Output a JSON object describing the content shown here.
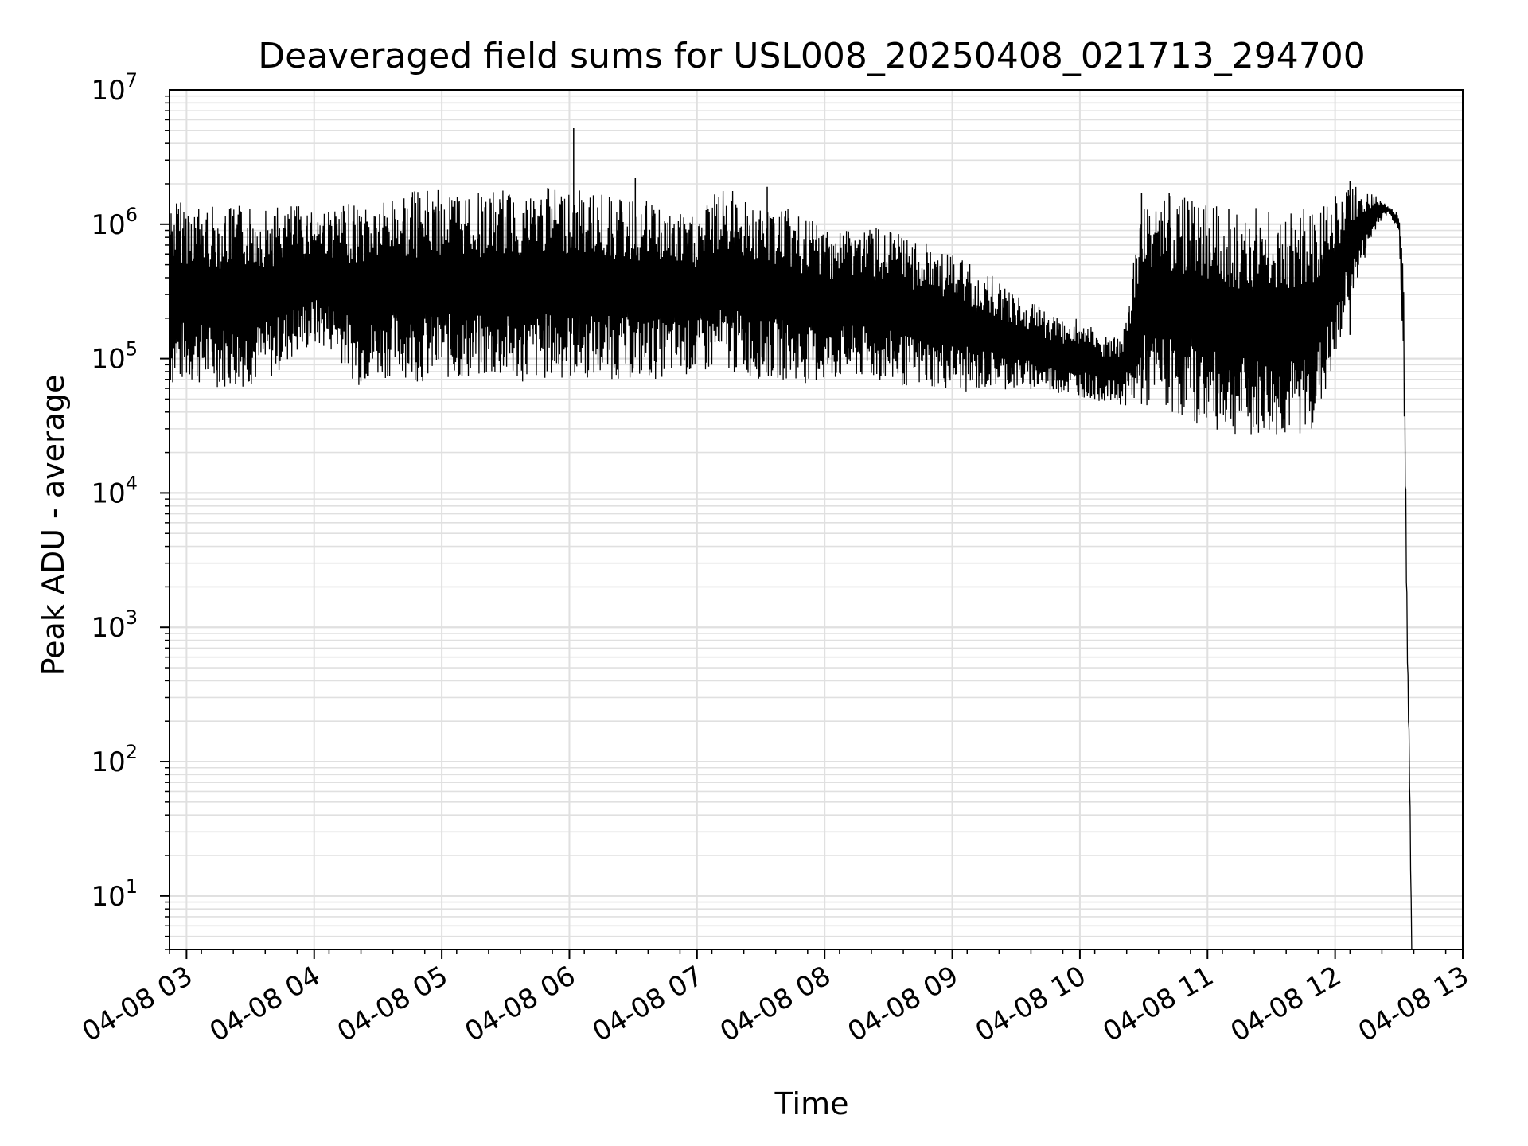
{
  "chart_data": {
    "type": "line",
    "title": "Deaveraged field sums for USL008_20250408_021713_294700",
    "xlabel": "Time",
    "ylabel": "Peak ADU - average",
    "yscale": "log",
    "ylim": [
      4,
      10000000
    ],
    "xlim": [
      "2025-04-08T02:52",
      "2025-04-08T13:00"
    ],
    "grid": true,
    "grid_minor": true,
    "line_color": "#000000",
    "grid_color": "#e0e0e0",
    "x_tick_labels": [
      "04-08 03",
      "04-08 04",
      "04-08 05",
      "04-08 06",
      "04-08 07",
      "04-08 08",
      "04-08 09",
      "04-08 10",
      "04-08 11",
      "04-08 12",
      "04-08 13"
    ],
    "x_ticks": [
      "2025-04-08T03:00",
      "2025-04-08T04:00",
      "2025-04-08T05:00",
      "2025-04-08T06:00",
      "2025-04-08T07:00",
      "2025-04-08T08:00",
      "2025-04-08T09:00",
      "2025-04-08T10:00",
      "2025-04-08T11:00",
      "2025-04-08T12:00",
      "2025-04-08T13:00"
    ],
    "y_ticks": [
      {
        "value": 10,
        "mantissa": "10",
        "exponent": "1"
      },
      {
        "value": 100,
        "mantissa": "10",
        "exponent": "2"
      },
      {
        "value": 1000,
        "mantissa": "10",
        "exponent": "3"
      },
      {
        "value": 10000,
        "mantissa": "10",
        "exponent": "4"
      },
      {
        "value": 100000,
        "mantissa": "10",
        "exponent": "5"
      },
      {
        "value": 1000000,
        "mantissa": "10",
        "exponent": "6"
      },
      {
        "value": 10000000,
        "mantissa": "10",
        "exponent": "7"
      }
    ],
    "series": [
      {
        "x": [
          "2025-04-08T02:52",
          "2025-04-08T03:00",
          "2025-04-08T03:10",
          "2025-04-08T03:20",
          "2025-04-08T03:30",
          "2025-04-08T03:40",
          "2025-04-08T03:50",
          "2025-04-08T04:00",
          "2025-04-08T04:10",
          "2025-04-08T04:20",
          "2025-04-08T04:30",
          "2025-04-08T04:40",
          "2025-04-08T04:50",
          "2025-04-08T05:00",
          "2025-04-08T05:10",
          "2025-04-08T05:20",
          "2025-04-08T05:30",
          "2025-04-08T05:40",
          "2025-04-08T05:50",
          "2025-04-08T06:00",
          "2025-04-08T06:02",
          "2025-04-08T06:10",
          "2025-04-08T06:20",
          "2025-04-08T06:30",
          "2025-04-08T06:40",
          "2025-04-08T06:50",
          "2025-04-08T07:00",
          "2025-04-08T07:10",
          "2025-04-08T07:20",
          "2025-04-08T07:30",
          "2025-04-08T07:40",
          "2025-04-08T07:50",
          "2025-04-08T08:00",
          "2025-04-08T08:10",
          "2025-04-08T08:20",
          "2025-04-08T08:30",
          "2025-04-08T08:40",
          "2025-04-08T08:50",
          "2025-04-08T09:00",
          "2025-04-08T09:10",
          "2025-04-08T09:20",
          "2025-04-08T09:30",
          "2025-04-08T09:40",
          "2025-04-08T09:50",
          "2025-04-08T10:00",
          "2025-04-08T10:10",
          "2025-04-08T10:20",
          "2025-04-08T10:30",
          "2025-04-08T10:40",
          "2025-04-08T10:50",
          "2025-04-08T11:00",
          "2025-04-08T11:10",
          "2025-04-08T11:20",
          "2025-04-08T11:30",
          "2025-04-08T11:40",
          "2025-04-08T11:50",
          "2025-04-08T12:00",
          "2025-04-08T12:05",
          "2025-04-08T12:10",
          "2025-04-08T12:15",
          "2025-04-08T12:20",
          "2025-04-08T12:25",
          "2025-04-08T12:30",
          "2025-04-08T12:32",
          "2025-04-08T12:34",
          "2025-04-08T12:35",
          "2025-04-08T12:36"
        ],
        "low": [
          60000,
          65000,
          62000,
          60000,
          62000,
          70000,
          100000,
          120000,
          110000,
          62000,
          70000,
          75000,
          65000,
          70000,
          68000,
          70000,
          68000,
          65000,
          70000,
          70000,
          70000,
          70000,
          70000,
          70000,
          70000,
          75000,
          75000,
          80000,
          75000,
          70000,
          70000,
          65000,
          65000,
          70000,
          68000,
          65000,
          60000,
          60000,
          58000,
          55000,
          60000,
          58000,
          58000,
          55000,
          52000,
          48000,
          45000,
          42000,
          40000,
          35000,
          30000,
          28000,
          25000,
          25000,
          25000,
          30000,
          80000,
          200000,
          350000,
          600000,
          1000000,
          1200000,
          900000,
          100000,
          500,
          50,
          4
        ],
        "high": [
          1600000,
          1500000,
          1400000,
          1350000,
          1400000,
          1350000,
          1400000,
          1400000,
          1300000,
          1500000,
          1500000,
          1700000,
          1800000,
          1800000,
          1800000,
          1700000,
          1800000,
          1800000,
          1900000,
          1900000,
          1800000,
          1800000,
          1600000,
          1500000,
          1500000,
          1200000,
          1200000,
          1800000,
          1800000,
          1300000,
          1400000,
          1100000,
          1000000,
          1000000,
          1000000,
          900000,
          800000,
          700000,
          600000,
          500000,
          400000,
          300000,
          250000,
          200000,
          200000,
          150000,
          140000,
          1700000,
          1700000,
          1600000,
          1500000,
          1200000,
          1400000,
          1300000,
          1300000,
          1300000,
          1700000,
          2000000,
          2000000,
          1800000,
          1600000,
          1400000,
          1200000,
          1000000,
          800,
          150,
          4
        ],
        "spikes": [
          {
            "x": "2025-04-08T06:02",
            "y": 5200000
          },
          {
            "x": "2025-04-08T06:31",
            "y": 2200000
          },
          {
            "x": "2025-04-08T07:33",
            "y": 1900000
          },
          {
            "x": "2025-04-08T10:29",
            "y": 1700000
          },
          {
            "x": "2025-04-08T10:42",
            "y": 1700000
          },
          {
            "x": "2025-04-08T11:10",
            "y": 1300000
          },
          {
            "x": "2025-04-08T12:07",
            "y": 2100000
          },
          {
            "x": "2025-04-08T12:10",
            "y": 100000
          }
        ]
      }
    ]
  }
}
